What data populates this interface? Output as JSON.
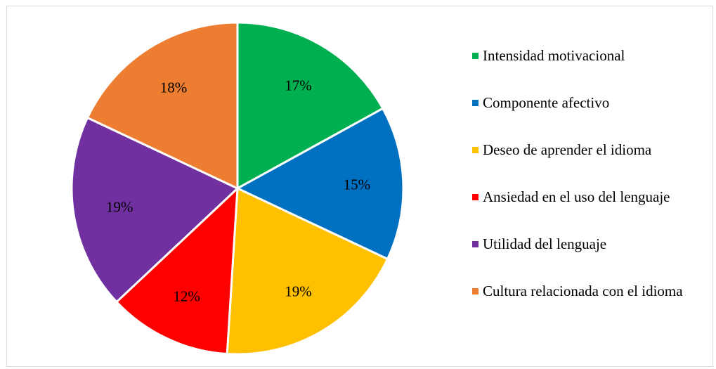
{
  "chart_data": {
    "type": "pie",
    "title": "",
    "slices": [
      {
        "label": "Intensidad motivacional",
        "value": 17,
        "display": "17%",
        "color": "#00b050"
      },
      {
        "label": "Componente afectivo",
        "value": 15,
        "display": "15%",
        "color": "#0070c0"
      },
      {
        "label": "Deseo de aprender el idioma",
        "value": 19,
        "display": "19%",
        "color": "#ffc000"
      },
      {
        "label": "Ansiedad en el uso del lenguaje",
        "value": 12,
        "display": "12%",
        "color": "#ff0000"
      },
      {
        "label": "Utilidad del lenguaje",
        "value": 19,
        "display": "19%",
        "color": "#7030a0"
      },
      {
        "label": "Cultura relacionada con el idioma",
        "value": 18,
        "display": "18%",
        "color": "#ed7d31"
      }
    ],
    "legend_position": "right"
  }
}
